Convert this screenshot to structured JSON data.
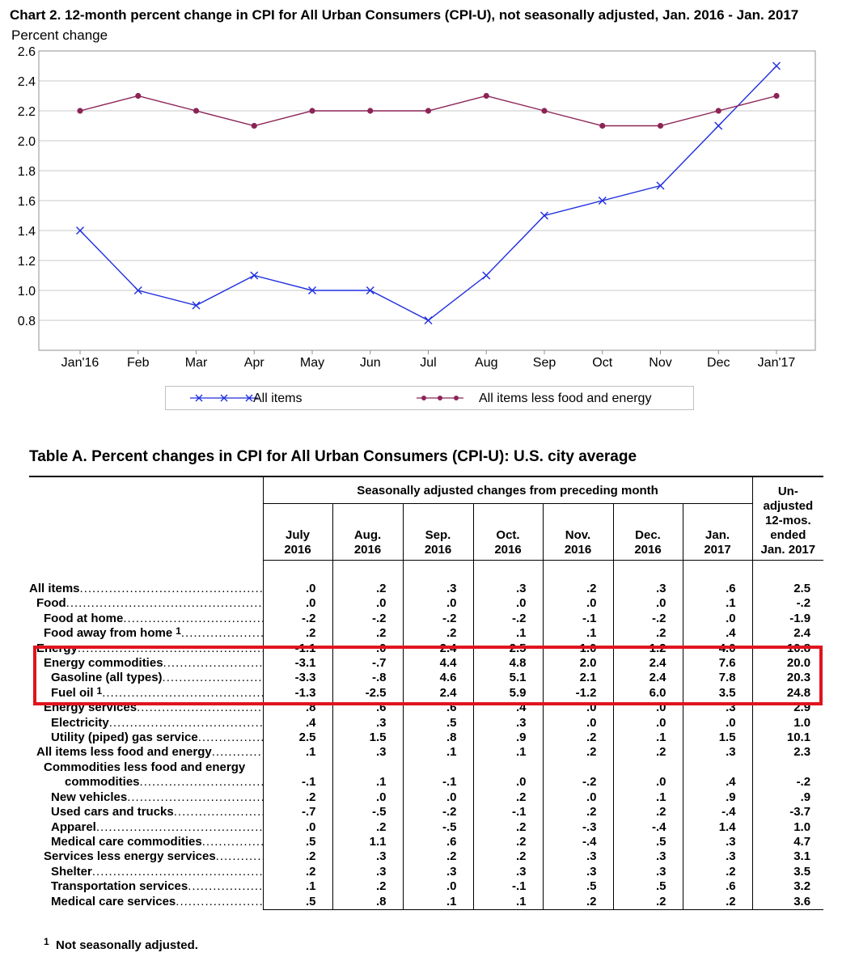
{
  "chart_title": "Chart 2. 12-month percent change in CPI for All Urban Consumers (CPI-U), not seasonally adjusted, Jan. 2016 - Jan. 2017",
  "chart_data": {
    "type": "line",
    "title": "Chart 2. 12-month percent change in CPI for All Urban Consumers (CPI-U), not seasonally adjusted, Jan. 2016 - Jan. 2017",
    "ylabel": "Percent change",
    "xlabel": "",
    "ylim": [
      0.6,
      2.6
    ],
    "yticks": [
      "0.8",
      "1.0",
      "1.2",
      "1.4",
      "1.6",
      "1.8",
      "2.0",
      "2.2",
      "2.4",
      "2.6"
    ],
    "grid": true,
    "legend_position": "bottom",
    "categories": [
      "Jan'16",
      "Feb",
      "Mar",
      "Apr",
      "May",
      "Jun",
      "Jul",
      "Aug",
      "Sep",
      "Oct",
      "Nov",
      "Dec",
      "Jan'17"
    ],
    "series": [
      {
        "name": "All items",
        "color": "#1f2ee0",
        "marker": "x",
        "values": [
          1.4,
          1.0,
          0.9,
          1.1,
          1.0,
          1.0,
          0.8,
          1.1,
          1.5,
          1.6,
          1.7,
          2.1,
          2.5
        ]
      },
      {
        "name": "All items less food and energy",
        "color": "#8c2456",
        "marker": "dot",
        "values": [
          2.2,
          2.3,
          2.2,
          2.1,
          2.2,
          2.2,
          2.2,
          2.3,
          2.2,
          2.1,
          2.1,
          2.2,
          2.3
        ]
      }
    ]
  },
  "table": {
    "title": "Table A. Percent changes in CPI for All Urban Consumers (CPI-U): U.S. city average",
    "group_header": "Seasonally adjusted changes from preceding month",
    "columns": [
      {
        "line1": "July",
        "line2": "2016"
      },
      {
        "line1": "Aug.",
        "line2": "2016"
      },
      {
        "line1": "Sep.",
        "line2": "2016"
      },
      {
        "line1": "Oct.",
        "line2": "2016"
      },
      {
        "line1": "Nov.",
        "line2": "2016"
      },
      {
        "line1": "Dec.",
        "line2": "2016"
      },
      {
        "line1": "Jan.",
        "line2": "2017"
      }
    ],
    "unadjusted_header": [
      "Un-",
      "adjusted",
      "12-mos.",
      "ended",
      "Jan. 2017"
    ],
    "rows": [
      {
        "label": "All items",
        "indent": 0,
        "values": [
          ".0",
          ".2",
          ".3",
          ".3",
          ".2",
          ".3",
          ".6",
          "2.5"
        ]
      },
      {
        "label": "Food",
        "indent": 1,
        "values": [
          ".0",
          ".0",
          ".0",
          ".0",
          ".0",
          ".0",
          ".1",
          "-.2"
        ]
      },
      {
        "label": "Food at home",
        "indent": 2,
        "values": [
          "-.2",
          "-.2",
          "-.2",
          "-.2",
          "-.1",
          "-.2",
          ".0",
          "-1.9"
        ]
      },
      {
        "label": "Food away from home",
        "indent": 2,
        "footnote": "1",
        "values": [
          ".2",
          ".2",
          ".2",
          ".1",
          ".1",
          ".2",
          ".4",
          "2.4"
        ]
      },
      {
        "label": "Energy",
        "indent": 1,
        "values": [
          "-1.1",
          ".0",
          "2.4",
          "2.5",
          "1.0",
          "1.2",
          "4.0",
          "10.8"
        ]
      },
      {
        "label": "Energy commodities",
        "indent": 2,
        "values": [
          "-3.1",
          "-.7",
          "4.4",
          "4.8",
          "2.0",
          "2.4",
          "7.6",
          "20.0"
        ]
      },
      {
        "label": "Gasoline (all types)",
        "indent": 3,
        "values": [
          "-3.3",
          "-.8",
          "4.6",
          "5.1",
          "2.1",
          "2.4",
          "7.8",
          "20.3"
        ]
      },
      {
        "label": "Fuel oil",
        "indent": 3,
        "footnote": "1",
        "values": [
          "-1.3",
          "-2.5",
          "2.4",
          "5.9",
          "-1.2",
          "6.0",
          "3.5",
          "24.8"
        ]
      },
      {
        "label": "Energy services",
        "indent": 2,
        "values": [
          ".8",
          ".6",
          ".6",
          ".4",
          ".0",
          ".0",
          ".3",
          "2.9"
        ]
      },
      {
        "label": "Electricity",
        "indent": 3,
        "values": [
          ".4",
          ".3",
          ".5",
          ".3",
          ".0",
          ".0",
          ".0",
          "1.0"
        ]
      },
      {
        "label": "Utility (piped) gas service",
        "indent": 3,
        "values": [
          "2.5",
          "1.5",
          ".8",
          ".9",
          ".2",
          ".1",
          "1.5",
          "10.1"
        ]
      },
      {
        "label": "All items less food and energy",
        "indent": 1,
        "values": [
          ".1",
          ".3",
          ".1",
          ".1",
          ".2",
          ".2",
          ".3",
          "2.3"
        ]
      },
      {
        "label": "Commodities less food and energy",
        "indent": 2,
        "header_only": true
      },
      {
        "label": "commodities",
        "indent": 5,
        "values": [
          "-.1",
          ".1",
          "-.1",
          ".0",
          "-.2",
          ".0",
          ".4",
          "-.2"
        ]
      },
      {
        "label": "New vehicles",
        "indent": 3,
        "values": [
          ".2",
          ".0",
          ".0",
          ".2",
          ".0",
          ".1",
          ".9",
          ".9"
        ]
      },
      {
        "label": "Used cars and trucks",
        "indent": 3,
        "values": [
          "-.7",
          "-.5",
          "-.2",
          "-.1",
          ".2",
          ".2",
          "-.4",
          "-3.7"
        ]
      },
      {
        "label": "Apparel",
        "indent": 3,
        "values": [
          ".0",
          ".2",
          "-.5",
          ".2",
          "-.3",
          "-.4",
          "1.4",
          "1.0"
        ]
      },
      {
        "label": "Medical care commodities",
        "indent": 3,
        "values": [
          ".5",
          "1.1",
          ".6",
          ".2",
          "-.4",
          ".5",
          ".3",
          "4.7"
        ]
      },
      {
        "label": "Services less energy services",
        "indent": 2,
        "values": [
          ".2",
          ".3",
          ".2",
          ".2",
          ".3",
          ".3",
          ".3",
          "3.1"
        ]
      },
      {
        "label": "Shelter",
        "indent": 3,
        "values": [
          ".2",
          ".3",
          ".3",
          ".3",
          ".3",
          ".3",
          ".2",
          "3.5"
        ]
      },
      {
        "label": "Transportation services",
        "indent": 3,
        "values": [
          ".1",
          ".2",
          ".0",
          "-.1",
          ".5",
          ".5",
          ".6",
          "3.2"
        ]
      },
      {
        "label": "Medical care services",
        "indent": 3,
        "values": [
          ".5",
          ".8",
          ".1",
          ".1",
          ".2",
          ".2",
          ".2",
          "3.6"
        ]
      }
    ]
  },
  "footnote": {
    "mark": "1",
    "text": "Not seasonally adjusted."
  },
  "highlight_color": "#e0141e"
}
